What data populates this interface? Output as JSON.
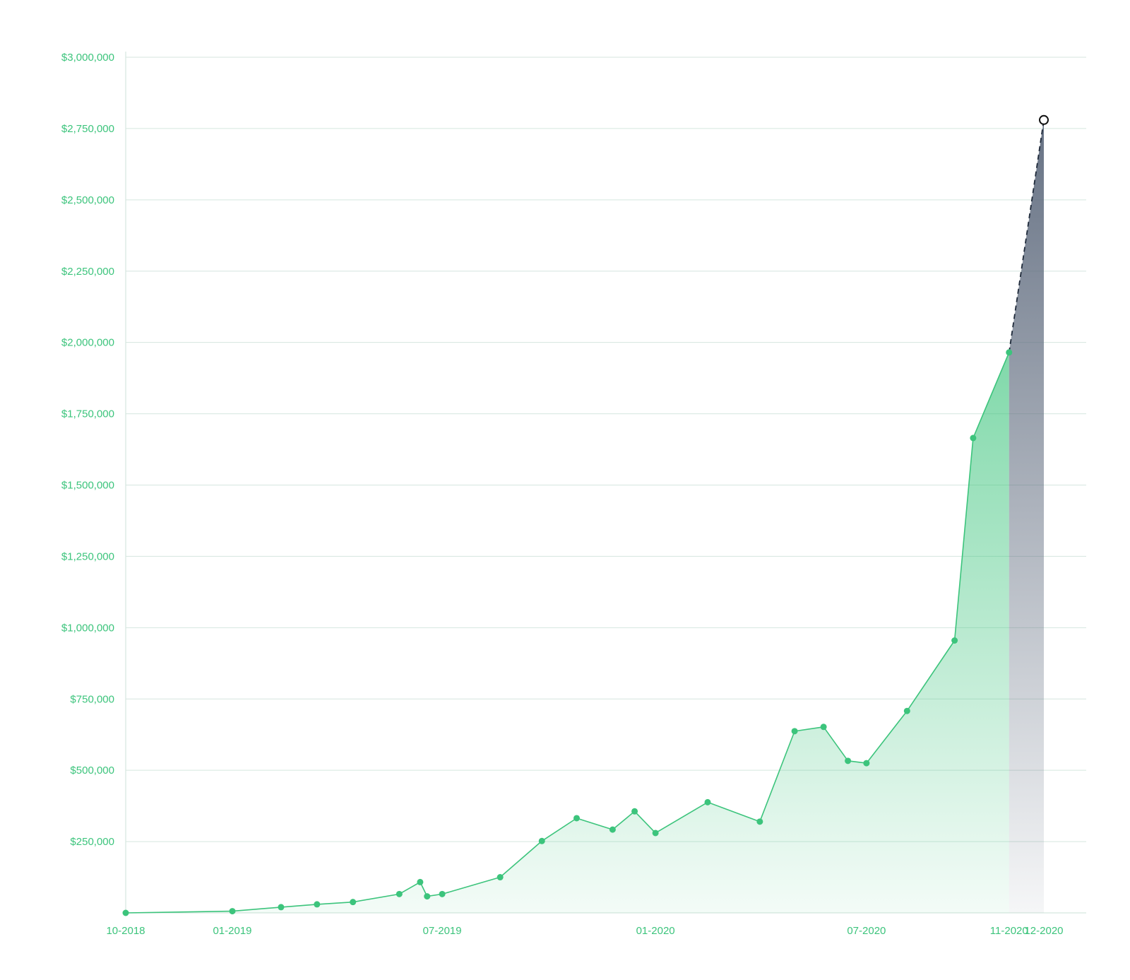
{
  "chart_data": {
    "type": "area",
    "title": "",
    "xlabel": "",
    "ylabel": "",
    "ylim": [
      0,
      3000000
    ],
    "grid": true,
    "legend": "none",
    "colors": {
      "actual_line": "#3cc47c",
      "actual_fill": "#3cc47c",
      "forecast_fill": "#5f6b7e",
      "forecast_line": "#1f2a3a",
      "grid": "#d5e6df",
      "tick_text": "#3cc47c"
    },
    "y_ticks": [
      {
        "value": 250000,
        "label": "$250,000"
      },
      {
        "value": 500000,
        "label": "$500,000"
      },
      {
        "value": 750000,
        "label": "$750,000"
      },
      {
        "value": 1000000,
        "label": "$1,000,000"
      },
      {
        "value": 1250000,
        "label": "$1,250,000"
      },
      {
        "value": 1500000,
        "label": "$1,500,000"
      },
      {
        "value": 1750000,
        "label": "$1,750,000"
      },
      {
        "value": 2000000,
        "label": "$2,000,000"
      },
      {
        "value": 2250000,
        "label": "$2,250,000"
      },
      {
        "value": 2500000,
        "label": "$2,500,000"
      },
      {
        "value": 2750000,
        "label": "$2,750,000"
      },
      {
        "value": 3000000,
        "label": "$3,000,000"
      }
    ],
    "x_ticks": [
      {
        "date": "2018-10-01",
        "label": "10-2018"
      },
      {
        "date": "2019-01-01",
        "label": "01-2019"
      },
      {
        "date": "2019-07-01",
        "label": "07-2019"
      },
      {
        "date": "2020-01-01",
        "label": "01-2020"
      },
      {
        "date": "2020-07-01",
        "label": "07-2020"
      },
      {
        "date": "2020-11-01",
        "label": "11-2020"
      },
      {
        "date": "2020-12-01",
        "label": "12-2020"
      }
    ],
    "series": [
      {
        "kind": "actual",
        "points": [
          {
            "date": "2018-10-01",
            "value": 0
          },
          {
            "date": "2019-01-01",
            "value": 6000
          },
          {
            "date": "2019-02-12",
            "value": 20000
          },
          {
            "date": "2019-03-15",
            "value": 30000
          },
          {
            "date": "2019-04-15",
            "value": 38000
          },
          {
            "date": "2019-05-25",
            "value": 66000
          },
          {
            "date": "2019-06-12",
            "value": 108000
          },
          {
            "date": "2019-06-18",
            "value": 58000
          },
          {
            "date": "2019-07-01",
            "value": 66000
          },
          {
            "date": "2019-08-20",
            "value": 125000
          },
          {
            "date": "2019-09-25",
            "value": 252000
          },
          {
            "date": "2019-10-25",
            "value": 332000
          },
          {
            "date": "2019-11-25",
            "value": 292000
          },
          {
            "date": "2019-12-14",
            "value": 356000
          },
          {
            "date": "2020-01-01",
            "value": 280000
          },
          {
            "date": "2020-02-15",
            "value": 388000
          },
          {
            "date": "2020-03-31",
            "value": 320000
          },
          {
            "date": "2020-04-30",
            "value": 637000
          },
          {
            "date": "2020-05-25",
            "value": 652000
          },
          {
            "date": "2020-06-15",
            "value": 533000
          },
          {
            "date": "2020-07-01",
            "value": 525000
          },
          {
            "date": "2020-08-05",
            "value": 708000
          },
          {
            "date": "2020-09-15",
            "value": 955000
          },
          {
            "date": "2020-10-01",
            "value": 1665000
          },
          {
            "date": "2020-11-01",
            "value": 1965000
          }
        ]
      },
      {
        "kind": "forecast",
        "points": [
          {
            "date": "2020-11-01",
            "value": 1965000
          },
          {
            "date": "2020-12-01",
            "value": 2780000
          }
        ]
      }
    ]
  }
}
